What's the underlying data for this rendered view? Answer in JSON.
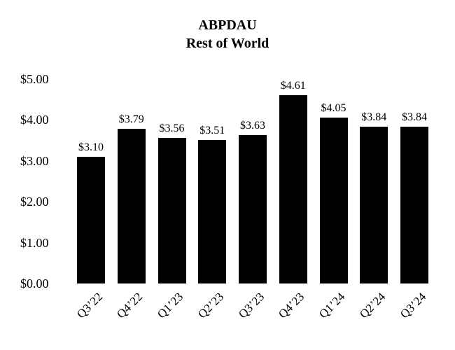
{
  "chart_data": {
    "type": "bar",
    "title": "ABPDAU",
    "subtitle": "Rest of World",
    "categories": [
      "Q3’22",
      "Q4’22",
      "Q1’23",
      "Q2’23",
      "Q3’23",
      "Q4’23",
      "Q1’24",
      "Q2’24",
      "Q3’24"
    ],
    "values": [
      3.1,
      3.79,
      3.56,
      3.51,
      3.63,
      4.61,
      4.05,
      3.84,
      3.84
    ],
    "value_labels": [
      "$3.10",
      "$3.79",
      "$3.56",
      "$3.51",
      "$3.63",
      "$4.61",
      "$4.05",
      "$3.84",
      "$3.84"
    ],
    "xlabel": "",
    "ylabel": "",
    "ylim": [
      0,
      5
    ],
    "y_ticks": [
      {
        "value": 5,
        "label": "$5.00"
      },
      {
        "value": 4,
        "label": "$4.00"
      },
      {
        "value": 3,
        "label": "$3.00"
      },
      {
        "value": 2,
        "label": "$2.00"
      },
      {
        "value": 1,
        "label": "$1.00"
      },
      {
        "value": 0,
        "label": "$0.00"
      }
    ],
    "grid": false,
    "legend": null,
    "x_tick_rotation_deg": 45,
    "bar_color": "#000000",
    "text_color": "#000000",
    "background_color": "#ffffff"
  }
}
